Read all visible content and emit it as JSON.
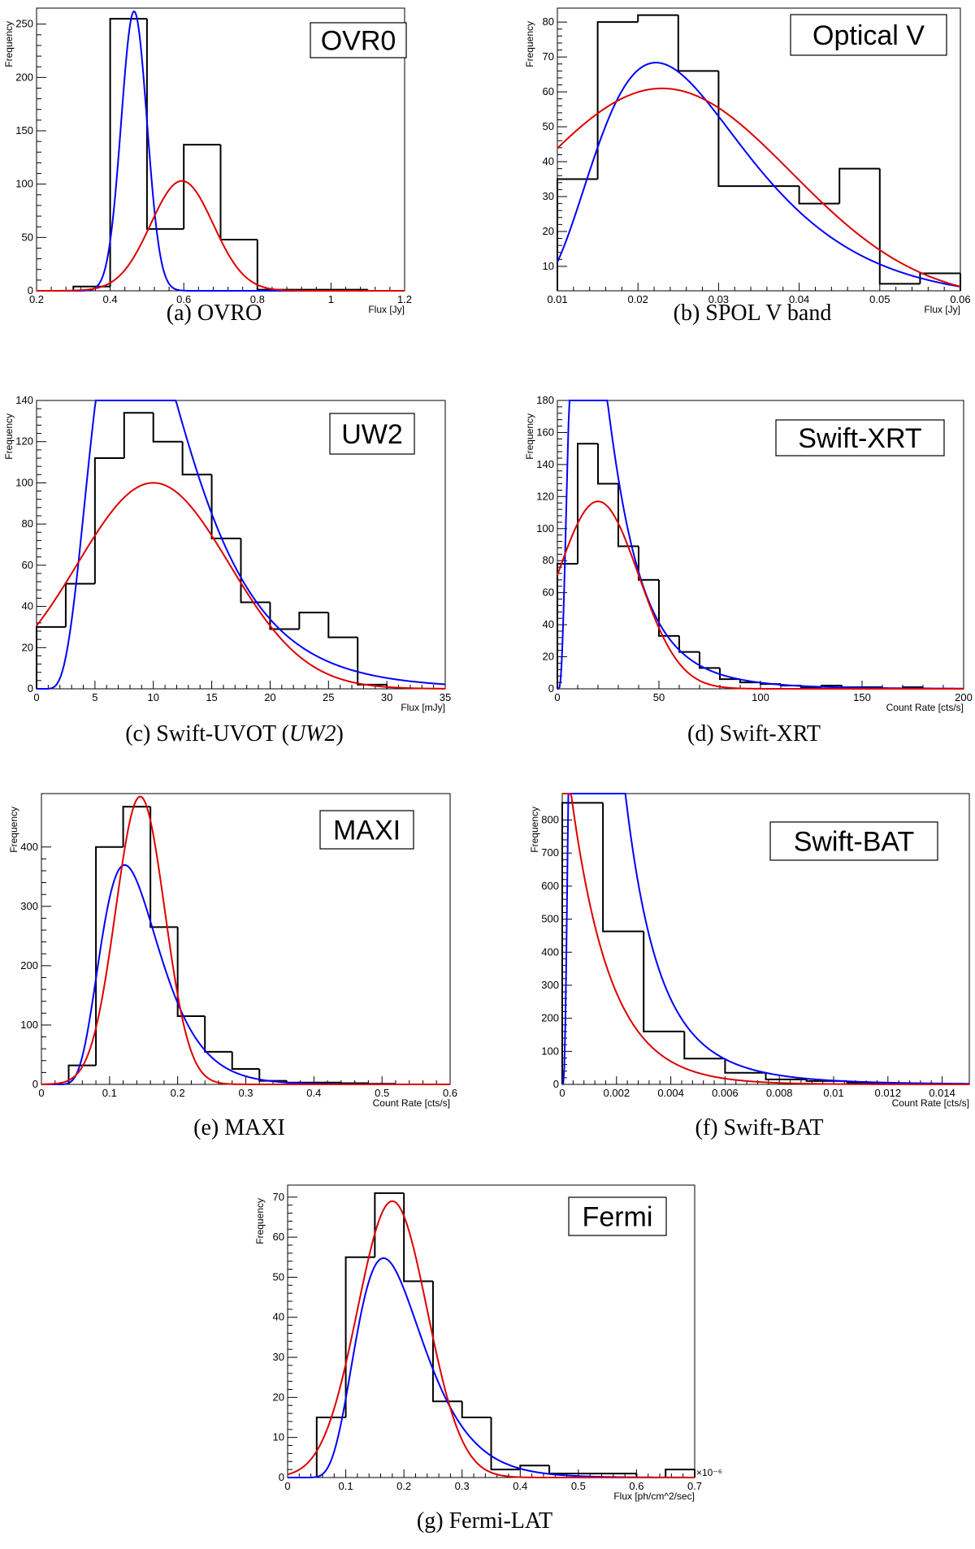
{
  "chart_data": [
    {
      "id": "a",
      "type": "histogram",
      "caption_prefix": "(a)",
      "caption_text": "OVRO",
      "caption_italic": "",
      "caption_suffix": "",
      "legend": "OVR0",
      "xlabel": "Flux [Jy]",
      "ylabel": "Frequency",
      "xlim": [
        0.2,
        1.2
      ],
      "ylim": [
        0,
        265
      ],
      "xticks": [
        0.2,
        0.4,
        0.6,
        0.8,
        1,
        1.2
      ],
      "xtick_labels": [
        "0.2",
        "0.4",
        "0.6",
        "0.8",
        "1",
        "1.2"
      ],
      "yticks": [
        0,
        50,
        100,
        150,
        200,
        250
      ],
      "ytick_labels": [
        "0",
        "50",
        "100",
        "150",
        "200",
        "250"
      ],
      "x_exponent": "",
      "bin_edges": [
        0.3,
        0.4,
        0.5,
        0.6,
        0.7,
        0.8,
        0.9,
        1.0,
        1.1
      ],
      "counts": [
        4,
        255,
        58,
        137,
        48,
        1,
        1,
        1
      ],
      "fits": [
        {
          "color": "#0000ff",
          "kind": "gauss",
          "params": {
            "A": 262,
            "mu": 0.465,
            "sigma": 0.035
          }
        },
        {
          "color": "#dd0000",
          "kind": "gauss",
          "params": {
            "A": 103,
            "mu": 0.595,
            "sigma": 0.085
          }
        }
      ]
    },
    {
      "id": "b",
      "type": "histogram",
      "caption_prefix": "(b)",
      "caption_text": "SPOL V band",
      "caption_italic": "",
      "caption_suffix": "",
      "legend": "Optical V",
      "xlabel": "Flux [Jy]",
      "ylabel": "Frequency",
      "xlim": [
        0.01,
        0.06
      ],
      "ylim": [
        3,
        84
      ],
      "xticks": [
        0.01,
        0.02,
        0.03,
        0.04,
        0.05,
        0.06
      ],
      "xtick_labels": [
        "0.01",
        "0.02",
        "0.03",
        "0.04",
        "0.05",
        "0.06"
      ],
      "yticks": [
        10,
        20,
        30,
        40,
        50,
        60,
        70,
        80
      ],
      "ytick_labels": [
        "10",
        "20",
        "30",
        "40",
        "50",
        "60",
        "70",
        "80"
      ],
      "x_exponent": "",
      "bin_edges": [
        0.01,
        0.015,
        0.02,
        0.025,
        0.03,
        0.035,
        0.04,
        0.045,
        0.05,
        0.055,
        0.06
      ],
      "counts": [
        35,
        80,
        82,
        66,
        33,
        33,
        28,
        38,
        5,
        8
      ],
      "fits": [
        {
          "color": "#0000ff",
          "kind": "lognormal",
          "params": {
            "A": 1.66,
            "mu": -3.63,
            "sigma": 0.42
          }
        },
        {
          "color": "#dd0000",
          "kind": "gauss",
          "params": {
            "A": 61,
            "mu": 0.023,
            "sigma": 0.016
          }
        }
      ]
    },
    {
      "id": "c",
      "type": "histogram",
      "caption_prefix": "(c)",
      "caption_text": "Swift-UVOT (",
      "caption_italic": "UW2",
      "caption_suffix": ")",
      "legend": "UW2",
      "xlabel": "Flux [mJy]",
      "ylabel": "Frequency",
      "xlim": [
        0,
        35
      ],
      "ylim": [
        0,
        140
      ],
      "xticks": [
        0,
        5,
        10,
        15,
        20,
        25,
        30,
        35
      ],
      "xtick_labels": [
        "0",
        "5",
        "10",
        "15",
        "20",
        "25",
        "30",
        "35"
      ],
      "yticks": [
        0,
        20,
        40,
        60,
        80,
        100,
        120,
        140
      ],
      "ytick_labels": [
        "0",
        "20",
        "40",
        "60",
        "80",
        "100",
        "120",
        "140"
      ],
      "x_exponent": "",
      "bin_edges": [
        0,
        2.5,
        5,
        7.5,
        10,
        12.5,
        15,
        17.5,
        20,
        22.5,
        25,
        27.5,
        30
      ],
      "counts": [
        30,
        51,
        112,
        134,
        120,
        104,
        73,
        42,
        29,
        37,
        25,
        2
      ],
      "fits": [
        {
          "color": "#0000ff",
          "kind": "lognormal",
          "params": {
            "A": 1780,
            "mu": 2.3,
            "sigma": 0.5
          }
        },
        {
          "color": "#dd0000",
          "kind": "gauss",
          "params": {
            "A": 100,
            "mu": 10,
            "sigma": 6.5
          }
        }
      ]
    },
    {
      "id": "d",
      "type": "histogram",
      "caption_prefix": "(d)",
      "caption_text": "Swift-XRT",
      "caption_italic": "",
      "caption_suffix": "",
      "legend": "Swift-XRT",
      "xlabel": "Count Rate [cts/s]",
      "ylabel": "Frequency",
      "xlim": [
        0,
        200
      ],
      "ylim": [
        0,
        180
      ],
      "xticks": [
        0,
        50,
        100,
        150,
        200
      ],
      "xtick_labels": [
        "0",
        "50",
        "100",
        "150",
        "200"
      ],
      "yticks": [
        0,
        20,
        40,
        60,
        80,
        100,
        120,
        140,
        160,
        180
      ],
      "ytick_labels": [
        "0",
        "20",
        "40",
        "60",
        "80",
        "100",
        "120",
        "140",
        "160",
        "180"
      ],
      "x_exponent": "",
      "bin_edges": [
        0,
        10,
        20,
        30,
        40,
        50,
        60,
        70,
        80,
        90,
        100,
        110,
        120,
        130,
        140,
        150,
        160,
        170,
        180,
        190,
        200
      ],
      "counts": [
        78,
        153,
        128,
        89,
        68,
        33,
        23,
        13,
        6,
        4,
        3,
        2,
        1,
        2,
        1,
        1,
        0,
        1,
        0,
        0
      ],
      "fits": [
        {
          "color": "#0000ff",
          "kind": "lognormal",
          "params": {
            "A": 4610,
            "mu": 3.0,
            "sigma": 0.72
          }
        },
        {
          "color": "#dd0000",
          "kind": "gauss",
          "params": {
            "A": 117,
            "mu": 20,
            "sigma": 20
          }
        }
      ]
    },
    {
      "id": "e",
      "type": "histogram",
      "caption_prefix": "(e)",
      "caption_text": "MAXI",
      "caption_italic": "",
      "caption_suffix": "",
      "legend": "MAXI",
      "xlabel": "Count Rate [cts/s]",
      "ylabel": "Frequency",
      "xlim": [
        0,
        0.6
      ],
      "ylim": [
        0,
        490
      ],
      "xticks": [
        0,
        0.1,
        0.2,
        0.3,
        0.4,
        0.5,
        0.6
      ],
      "xtick_labels": [
        "0",
        "0.1",
        "0.2",
        "0.3",
        "0.4",
        "0.5",
        "0.6"
      ],
      "yticks": [
        0,
        100,
        200,
        300,
        400
      ],
      "ytick_labels": [
        "0",
        "100",
        "200",
        "300",
        "400"
      ],
      "x_exponent": "",
      "bin_edges": [
        0.04,
        0.08,
        0.12,
        0.16,
        0.2,
        0.24,
        0.28,
        0.32,
        0.36,
        0.4,
        0.44,
        0.48,
        0.52
      ],
      "counts": [
        32,
        400,
        468,
        265,
        115,
        55,
        26,
        6,
        3,
        3,
        2,
        1
      ],
      "fits": [
        {
          "color": "#0000ff",
          "kind": "lognormal",
          "params": {
            "A": 48,
            "mu": -1.98,
            "sigma": 0.35
          }
        },
        {
          "color": "#dd0000",
          "kind": "gauss",
          "params": {
            "A": 485,
            "mu": 0.145,
            "sigma": 0.036
          }
        }
      ]
    },
    {
      "id": "f",
      "type": "histogram",
      "caption_prefix": "(f)",
      "caption_text": "Swift-BAT",
      "caption_italic": "",
      "caption_suffix": "",
      "legend": "Swift-BAT",
      "xlabel": "Count Rate [cts/s]",
      "ylabel": "Frequency",
      "xlim": [
        0,
        0.015
      ],
      "ylim": [
        0,
        880
      ],
      "xticks": [
        0,
        0.002,
        0.004,
        0.006,
        0.008,
        0.01,
        0.012,
        0.014
      ],
      "xtick_labels": [
        "0",
        "0.002",
        "0.004",
        "0.006",
        "0.008",
        "0.01",
        "0.012",
        "0.014"
      ],
      "yticks": [
        0,
        100,
        200,
        300,
        400,
        500,
        600,
        700,
        800
      ],
      "ytick_labels": [
        "0",
        "100",
        "200",
        "300",
        "400",
        "500",
        "600",
        "700",
        "800"
      ],
      "x_exponent": "",
      "bin_edges": [
        0,
        0.0015,
        0.003,
        0.0045,
        0.006,
        0.0075,
        0.009,
        0.0105,
        0.012,
        0.0135,
        0.015
      ],
      "counts": [
        852,
        463,
        160,
        78,
        35,
        15,
        10,
        5,
        2,
        1
      ],
      "fits": [
        {
          "color": "#0000ff",
          "kind": "lognormal",
          "params": {
            "A": 2.56,
            "mu": -6.6,
            "sigma": 0.8
          }
        },
        {
          "color": "#dd0000",
          "kind": "expo",
          "params": {
            "A": 1100,
            "tau": 0.00145
          }
        }
      ]
    },
    {
      "id": "g",
      "type": "histogram",
      "caption_prefix": "(g)",
      "caption_text": "Fermi-LAT",
      "caption_italic": "",
      "caption_suffix": "",
      "legend": "Fermi",
      "xlabel": "Flux [ph/cm^2/sec]",
      "ylabel": "Frequency",
      "xlim": [
        0,
        0.7
      ],
      "ylim": [
        0,
        73
      ],
      "xticks": [
        0,
        0.1,
        0.2,
        0.3,
        0.4,
        0.5,
        0.6,
        0.7
      ],
      "xtick_labels": [
        "0",
        "0.1",
        "0.2",
        "0.3",
        "0.4",
        "0.5",
        "0.6",
        "0.7"
      ],
      "yticks": [
        0,
        10,
        20,
        30,
        40,
        50,
        60,
        70
      ],
      "ytick_labels": [
        "0",
        "10",
        "20",
        "30",
        "40",
        "50",
        "60",
        "70"
      ],
      "x_exponent": "×10⁻⁶",
      "bin_edges": [
        0.05,
        0.1,
        0.15,
        0.2,
        0.25,
        0.3,
        0.35,
        0.4,
        0.45,
        0.5,
        0.55,
        0.6,
        0.65,
        0.7
      ],
      "counts": [
        15,
        55,
        71,
        49,
        19,
        15,
        2,
        3,
        1,
        1,
        1,
        0,
        2
      ],
      "fits": [
        {
          "color": "#0000ff",
          "kind": "lognormal",
          "params": {
            "A": 9.6,
            "mu": -1.68,
            "sigma": 0.35
          }
        },
        {
          "color": "#dd0000",
          "kind": "gauss",
          "params": {
            "A": 69,
            "mu": 0.18,
            "sigma": 0.06
          }
        }
      ]
    }
  ]
}
